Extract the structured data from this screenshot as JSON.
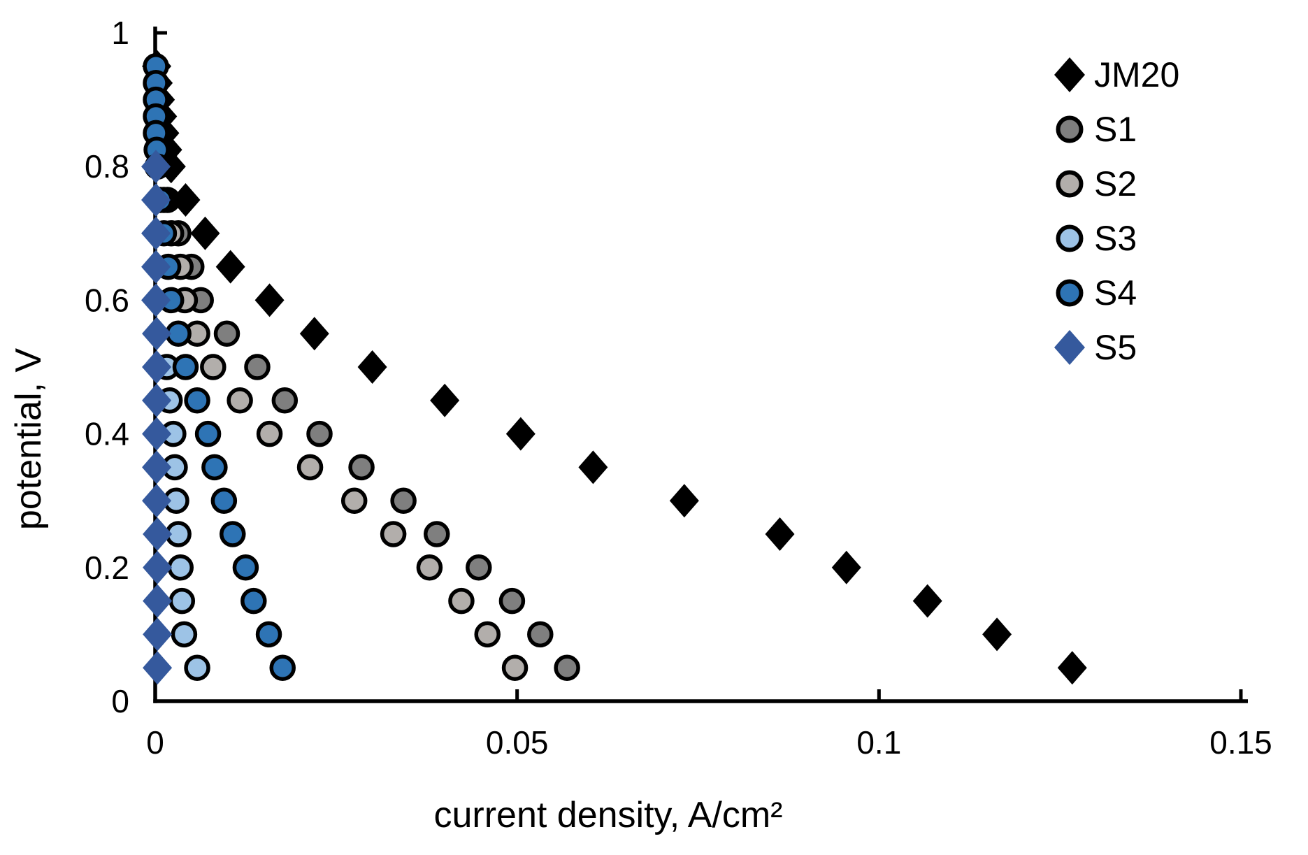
{
  "chart_data": {
    "type": "scatter",
    "title": "",
    "xlabel": "current density, A/cm²",
    "ylabel": "potential, V",
    "xlim": [
      0,
      0.15
    ],
    "ylim": [
      0,
      1
    ],
    "x_ticks": [
      0,
      0.05,
      0.1,
      0.15
    ],
    "x_tick_labels": [
      "0",
      "0.05",
      "0.1",
      "0.15"
    ],
    "y_ticks": [
      0,
      0.2,
      0.4,
      0.6,
      0.8,
      1
    ],
    "y_tick_labels": [
      "0",
      "0.2",
      "0.4",
      "0.6",
      "0.8",
      "1"
    ],
    "grid": false,
    "legend_position": "upper right",
    "axis_color": "#000000",
    "marker_outline_color": "#000000",
    "series": [
      {
        "name": "JM20",
        "marker": "diamond",
        "color": "#000000",
        "outlined": false,
        "points": [
          [
            0.0002,
            0.95
          ],
          [
            0.0004,
            0.925
          ],
          [
            0.0007,
            0.9
          ],
          [
            0.001,
            0.875
          ],
          [
            0.0013,
            0.85
          ],
          [
            0.0017,
            0.825
          ],
          [
            0.0022,
            0.8
          ],
          [
            0.0042,
            0.75
          ],
          [
            0.0069,
            0.7
          ],
          [
            0.0104,
            0.65
          ],
          [
            0.0158,
            0.6
          ],
          [
            0.022,
            0.55
          ],
          [
            0.03,
            0.5
          ],
          [
            0.04,
            0.45
          ],
          [
            0.0505,
            0.4
          ],
          [
            0.0605,
            0.35
          ],
          [
            0.0731,
            0.3
          ],
          [
            0.0863,
            0.25
          ],
          [
            0.0955,
            0.2
          ],
          [
            0.1067,
            0.15
          ],
          [
            0.1163,
            0.1
          ],
          [
            0.1267,
            0.05
          ]
        ]
      },
      {
        "name": "S1",
        "marker": "circle",
        "color": "#7f7f7f",
        "outlined": true,
        "points": [
          [
            0.0017,
            0.75
          ],
          [
            0.0032,
            0.7
          ],
          [
            0.005,
            0.65
          ],
          [
            0.0063,
            0.6
          ],
          [
            0.0099,
            0.55
          ],
          [
            0.0141,
            0.5
          ],
          [
            0.0179,
            0.45
          ],
          [
            0.0227,
            0.4
          ],
          [
            0.0285,
            0.35
          ],
          [
            0.0343,
            0.3
          ],
          [
            0.0389,
            0.25
          ],
          [
            0.0447,
            0.2
          ],
          [
            0.0493,
            0.15
          ],
          [
            0.0532,
            0.1
          ],
          [
            0.0569,
            0.05
          ]
        ]
      },
      {
        "name": "S2",
        "marker": "circle",
        "color": "#b2aeab",
        "outlined": true,
        "points": [
          [
            0.0012,
            0.75
          ],
          [
            0.0022,
            0.7
          ],
          [
            0.0035,
            0.65
          ],
          [
            0.0041,
            0.6
          ],
          [
            0.0058,
            0.55
          ],
          [
            0.008,
            0.5
          ],
          [
            0.0117,
            0.45
          ],
          [
            0.0158,
            0.4
          ],
          [
            0.0214,
            0.35
          ],
          [
            0.0275,
            0.3
          ],
          [
            0.0329,
            0.25
          ],
          [
            0.0379,
            0.2
          ],
          [
            0.0423,
            0.15
          ],
          [
            0.0459,
            0.1
          ],
          [
            0.0497,
            0.05
          ]
        ]
      },
      {
        "name": "S3",
        "marker": "circle",
        "color": "#9dc3e6",
        "outlined": true,
        "points": [
          [
            0.0016,
            0.5
          ],
          [
            0.002,
            0.45
          ],
          [
            0.0025,
            0.4
          ],
          [
            0.0027,
            0.35
          ],
          [
            0.0029,
            0.3
          ],
          [
            0.0032,
            0.25
          ],
          [
            0.0035,
            0.2
          ],
          [
            0.0037,
            0.15
          ],
          [
            0.004,
            0.1
          ],
          [
            0.0058,
            0.05
          ]
        ]
      },
      {
        "name": "S4",
        "marker": "circle",
        "color": "#2e74b5",
        "outlined": true,
        "points": [
          [
            0.0001,
            0.95
          ],
          [
            0.0001,
            0.925
          ],
          [
            0.0001,
            0.9
          ],
          [
            0.0001,
            0.875
          ],
          [
            0.0001,
            0.85
          ],
          [
            0.0002,
            0.825
          ],
          [
            0.0003,
            0.8
          ],
          [
            0.0007,
            0.75
          ],
          [
            0.0012,
            0.7
          ],
          [
            0.0018,
            0.65
          ],
          [
            0.0022,
            0.6
          ],
          [
            0.0032,
            0.55
          ],
          [
            0.0042,
            0.5
          ],
          [
            0.0058,
            0.45
          ],
          [
            0.0073,
            0.4
          ],
          [
            0.0082,
            0.35
          ],
          [
            0.0095,
            0.3
          ],
          [
            0.0107,
            0.25
          ],
          [
            0.0125,
            0.2
          ],
          [
            0.0136,
            0.15
          ],
          [
            0.0157,
            0.1
          ],
          [
            0.0176,
            0.05
          ]
        ]
      },
      {
        "name": "S5",
        "marker": "diamond",
        "color": "#35599d",
        "outlined": false,
        "points": [
          [
            0.0001,
            0.8
          ],
          [
            0.0001,
            0.75
          ],
          [
            0.0001,
            0.7
          ],
          [
            0.0001,
            0.65
          ],
          [
            0.0001,
            0.6
          ],
          [
            0.0002,
            0.55
          ],
          [
            0.0002,
            0.5
          ],
          [
            0.0002,
            0.45
          ],
          [
            0.0002,
            0.4
          ],
          [
            0.0002,
            0.35
          ],
          [
            0.0002,
            0.3
          ],
          [
            0.0003,
            0.25
          ],
          [
            0.0003,
            0.2
          ],
          [
            0.0003,
            0.15
          ],
          [
            0.0003,
            0.1
          ],
          [
            0.0003,
            0.05
          ]
        ]
      }
    ],
    "legend_entries": [
      "JM20",
      "S1",
      "S2",
      "S3",
      "S4",
      "S5"
    ]
  }
}
